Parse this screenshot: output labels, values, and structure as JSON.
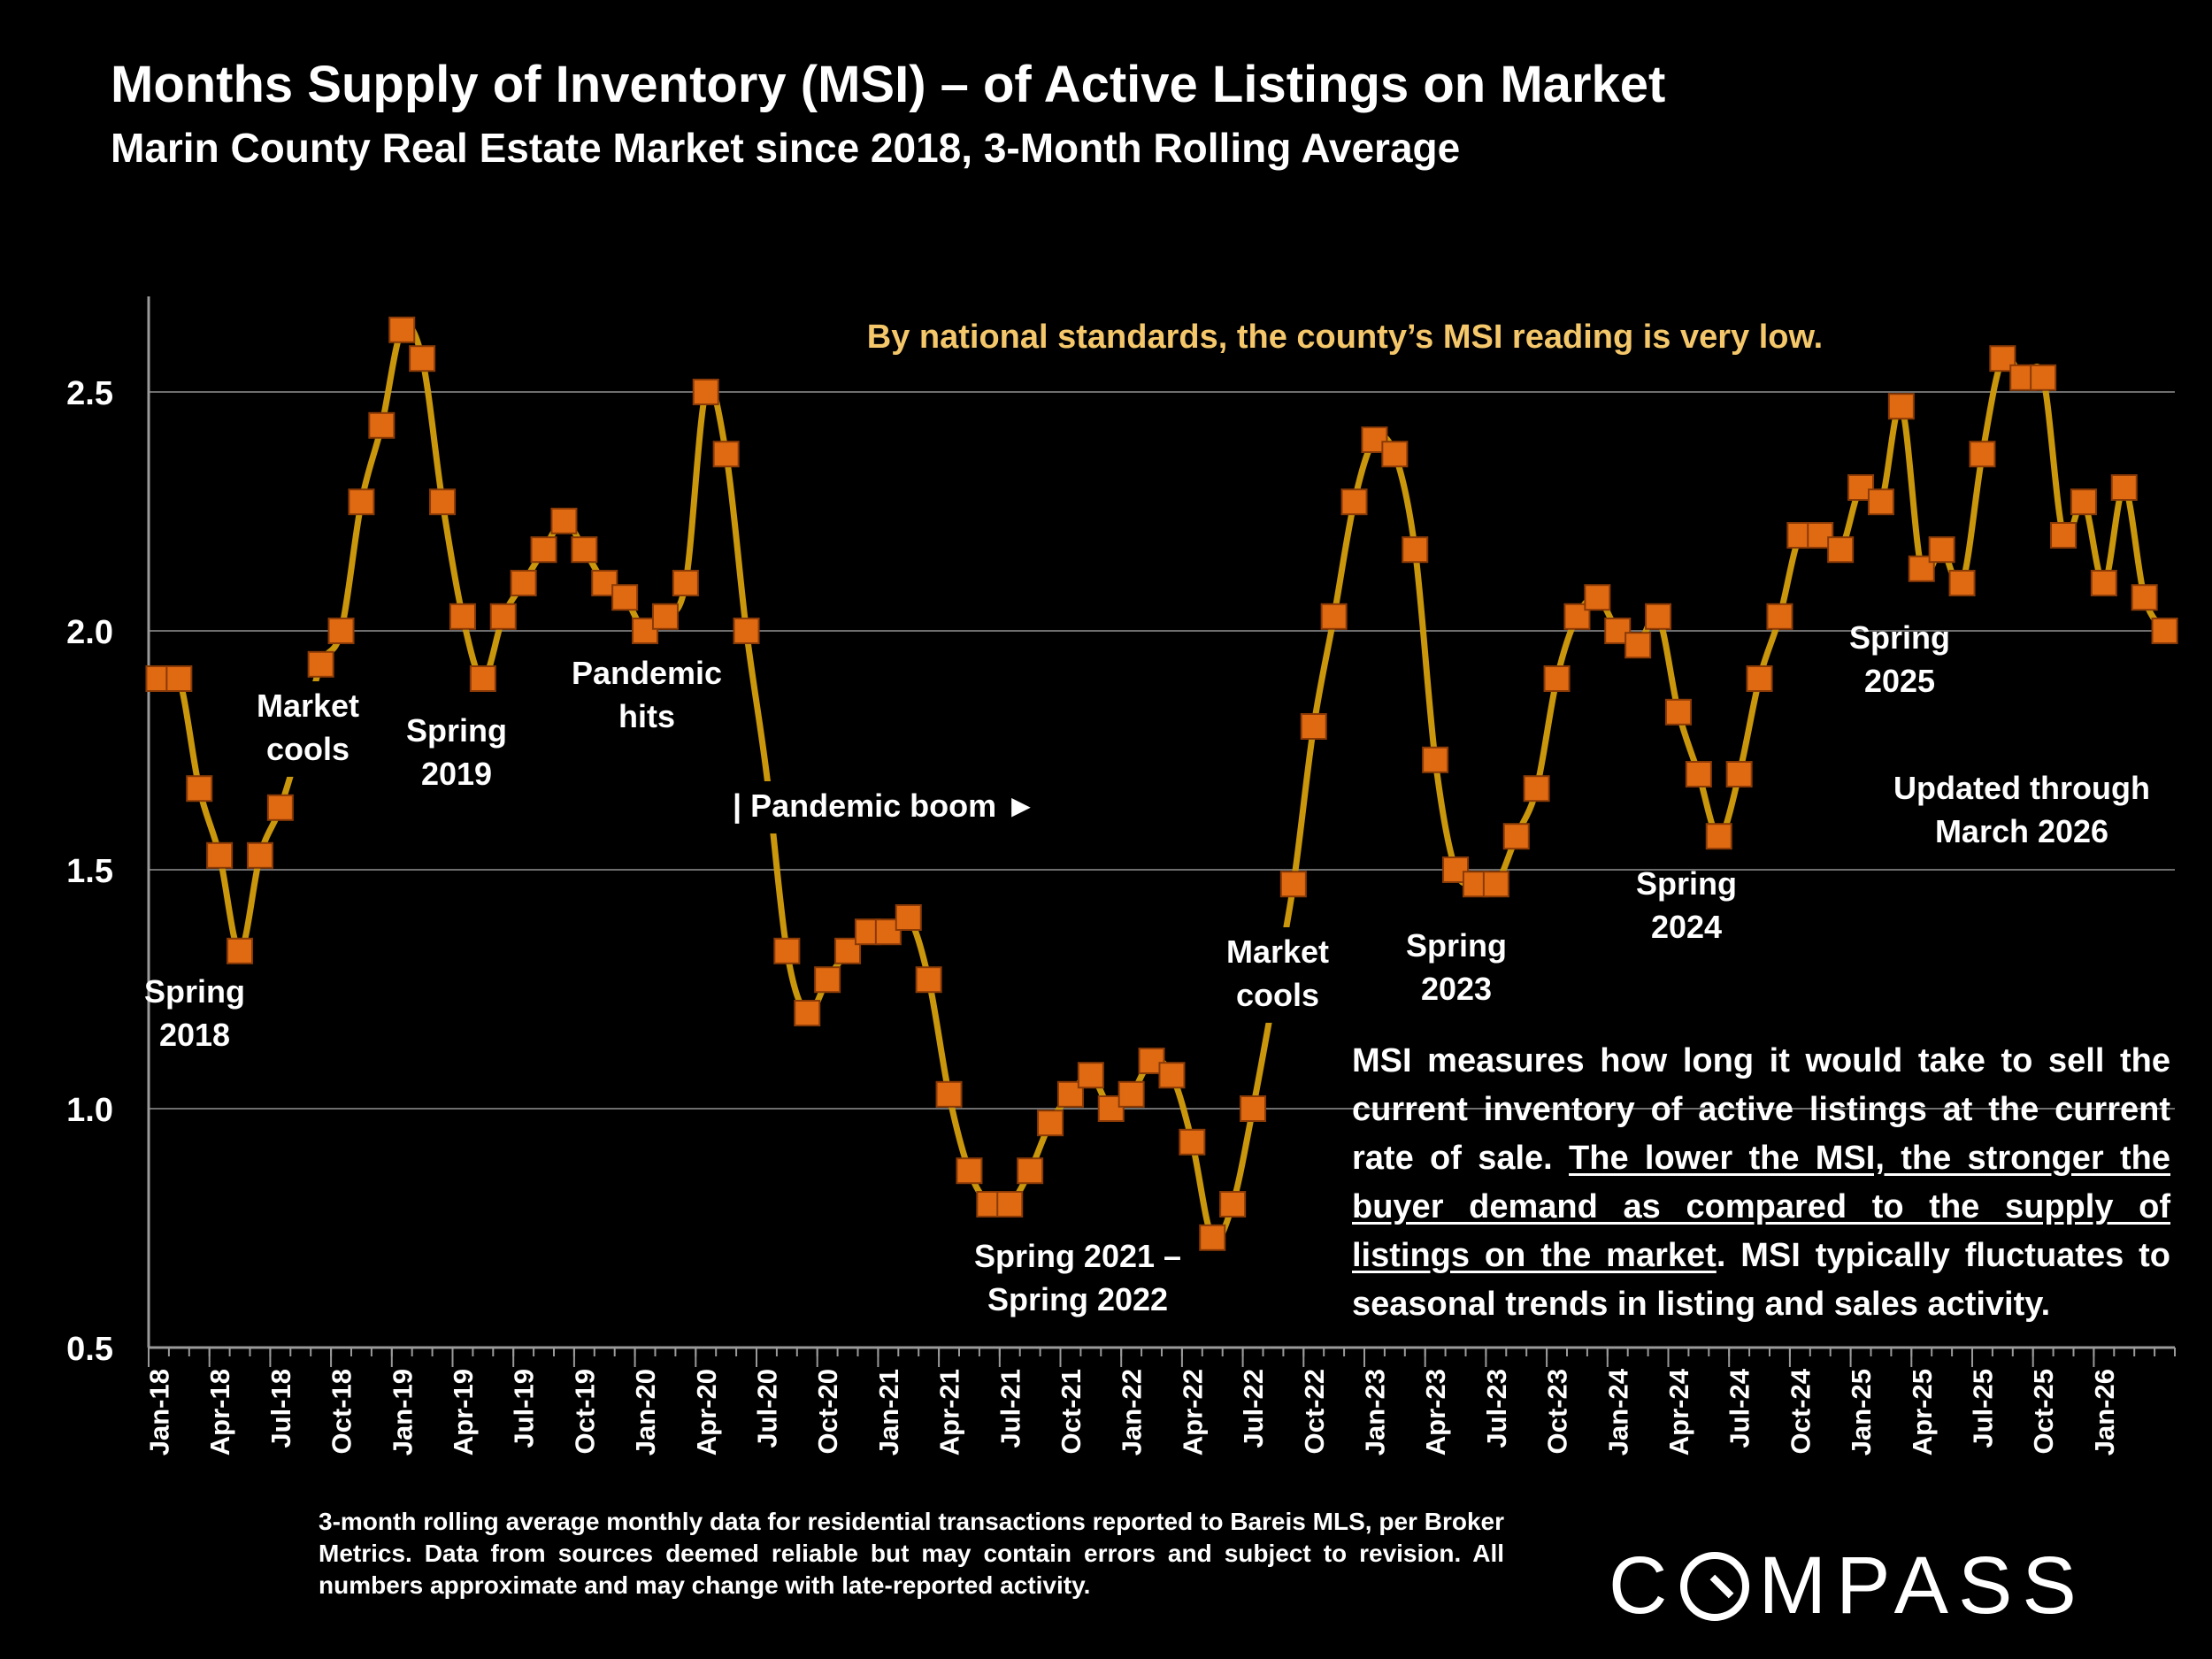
{
  "chart_data": {
    "type": "line",
    "title": "Months Supply of Inventory (MSI) – of Active Listings on Market",
    "subtitle": "Marin County Real Estate Market since 2018, 3-Month Rolling Average",
    "xlabel": "",
    "ylabel": "",
    "ylim": [
      0.5,
      2.7
    ],
    "yticks": [
      "0.5",
      "1.0",
      "1.5",
      "2.0",
      "2.5"
    ],
    "ytick_values": [
      0.5,
      1.0,
      1.5,
      2.0,
      2.5
    ],
    "grid": true,
    "tick_labels": [
      "Jan-18",
      "Apr-18",
      "Jul-18",
      "Oct-18",
      "Jan-19",
      "Apr-19",
      "Jul-19",
      "Oct-19",
      "Jan-20",
      "Apr-20",
      "Jul-20",
      "Oct-20",
      "Jan-21",
      "Apr-21",
      "Jul-21",
      "Oct-21",
      "Jan-22",
      "Apr-22",
      "Jul-22",
      "Oct-22",
      "Jan-23",
      "Apr-23",
      "Jul-23",
      "Oct-23",
      "Jan-24",
      "Apr-24",
      "Jul-24",
      "Oct-24",
      "Jan-25",
      "Apr-25",
      "Jul-25",
      "Oct-25",
      "Jan-26"
    ],
    "series": [
      {
        "name": "MSI",
        "color": "#C9960C",
        "marker_color": "#E06A12",
        "values": [
          1.9,
          1.9,
          1.67,
          1.53,
          1.33,
          1.53,
          1.63,
          1.77,
          1.93,
          2.0,
          2.27,
          2.43,
          2.63,
          2.57,
          2.27,
          2.03,
          1.9,
          2.03,
          2.1,
          2.17,
          2.23,
          2.17,
          2.1,
          2.07,
          2.0,
          2.03,
          2.1,
          2.5,
          2.37,
          2.0,
          1.7,
          1.33,
          1.2,
          1.27,
          1.33,
          1.37,
          1.37,
          1.4,
          1.27,
          1.03,
          0.87,
          0.8,
          0.8,
          0.87,
          0.97,
          1.03,
          1.07,
          1.0,
          1.03,
          1.1,
          1.07,
          0.93,
          0.73,
          0.8,
          1.0,
          1.23,
          1.47,
          1.8,
          2.03,
          2.27,
          2.4,
          2.37,
          2.17,
          1.73,
          1.5,
          1.47,
          1.47,
          1.57,
          1.67,
          1.9,
          2.03,
          2.07,
          2.0,
          1.97,
          2.03,
          1.83,
          1.7,
          1.57,
          1.7,
          1.9,
          2.03,
          2.2,
          2.2,
          2.17,
          2.3,
          2.27,
          2.47,
          2.13,
          2.17,
          2.1,
          2.37,
          2.57,
          2.53,
          2.53,
          2.2,
          2.27,
          2.1,
          2.3,
          2.07,
          2.0
        ]
      }
    ],
    "annotations": [
      {
        "id": "note-top",
        "text": "By national standards, the county’s MSI reading is very low."
      },
      {
        "id": "spring-2018",
        "lines": [
          "Spring",
          "2018"
        ]
      },
      {
        "id": "market-cools-2018",
        "lines": [
          "Market",
          "cools"
        ]
      },
      {
        "id": "spring-2019",
        "lines": [
          "Spring",
          "2019"
        ]
      },
      {
        "id": "pandemic-hits",
        "lines": [
          "Pandemic",
          "hits"
        ]
      },
      {
        "id": "pandemic-boom",
        "lines": [
          "| Pandemic boom ►"
        ]
      },
      {
        "id": "spring-2021-2022",
        "lines": [
          "Spring 2021 –",
          "Spring 2022"
        ]
      },
      {
        "id": "market-cools-2022",
        "lines": [
          "Market",
          "cools"
        ]
      },
      {
        "id": "spring-2023",
        "lines": [
          "Spring",
          "2023"
        ]
      },
      {
        "id": "spring-2024",
        "lines": [
          "Spring",
          "2024"
        ]
      },
      {
        "id": "spring-2025",
        "lines": [
          "Spring",
          "2025"
        ]
      },
      {
        "id": "updated",
        "lines": [
          "Updated through",
          "March 2026"
        ]
      }
    ]
  },
  "description": {
    "part1": "MSI measures how long it would take to sell the current inventory of active listings at the current rate of sale. ",
    "underlined": "The lower the MSI, the stronger the buyer demand as compared to the supply of listings on the market",
    "part2": ". MSI typically fluctuates to seasonal trends in listing and sales activity."
  },
  "footnote": "3-month rolling average monthly data for residential transactions reported to Bareis MLS, per Broker Metrics. Data from sources deemed reliable but may contain errors and subject to revision. All numbers approximate and may change with late-reported activity.",
  "logo": {
    "before": "C",
    "after": "MPASS"
  }
}
